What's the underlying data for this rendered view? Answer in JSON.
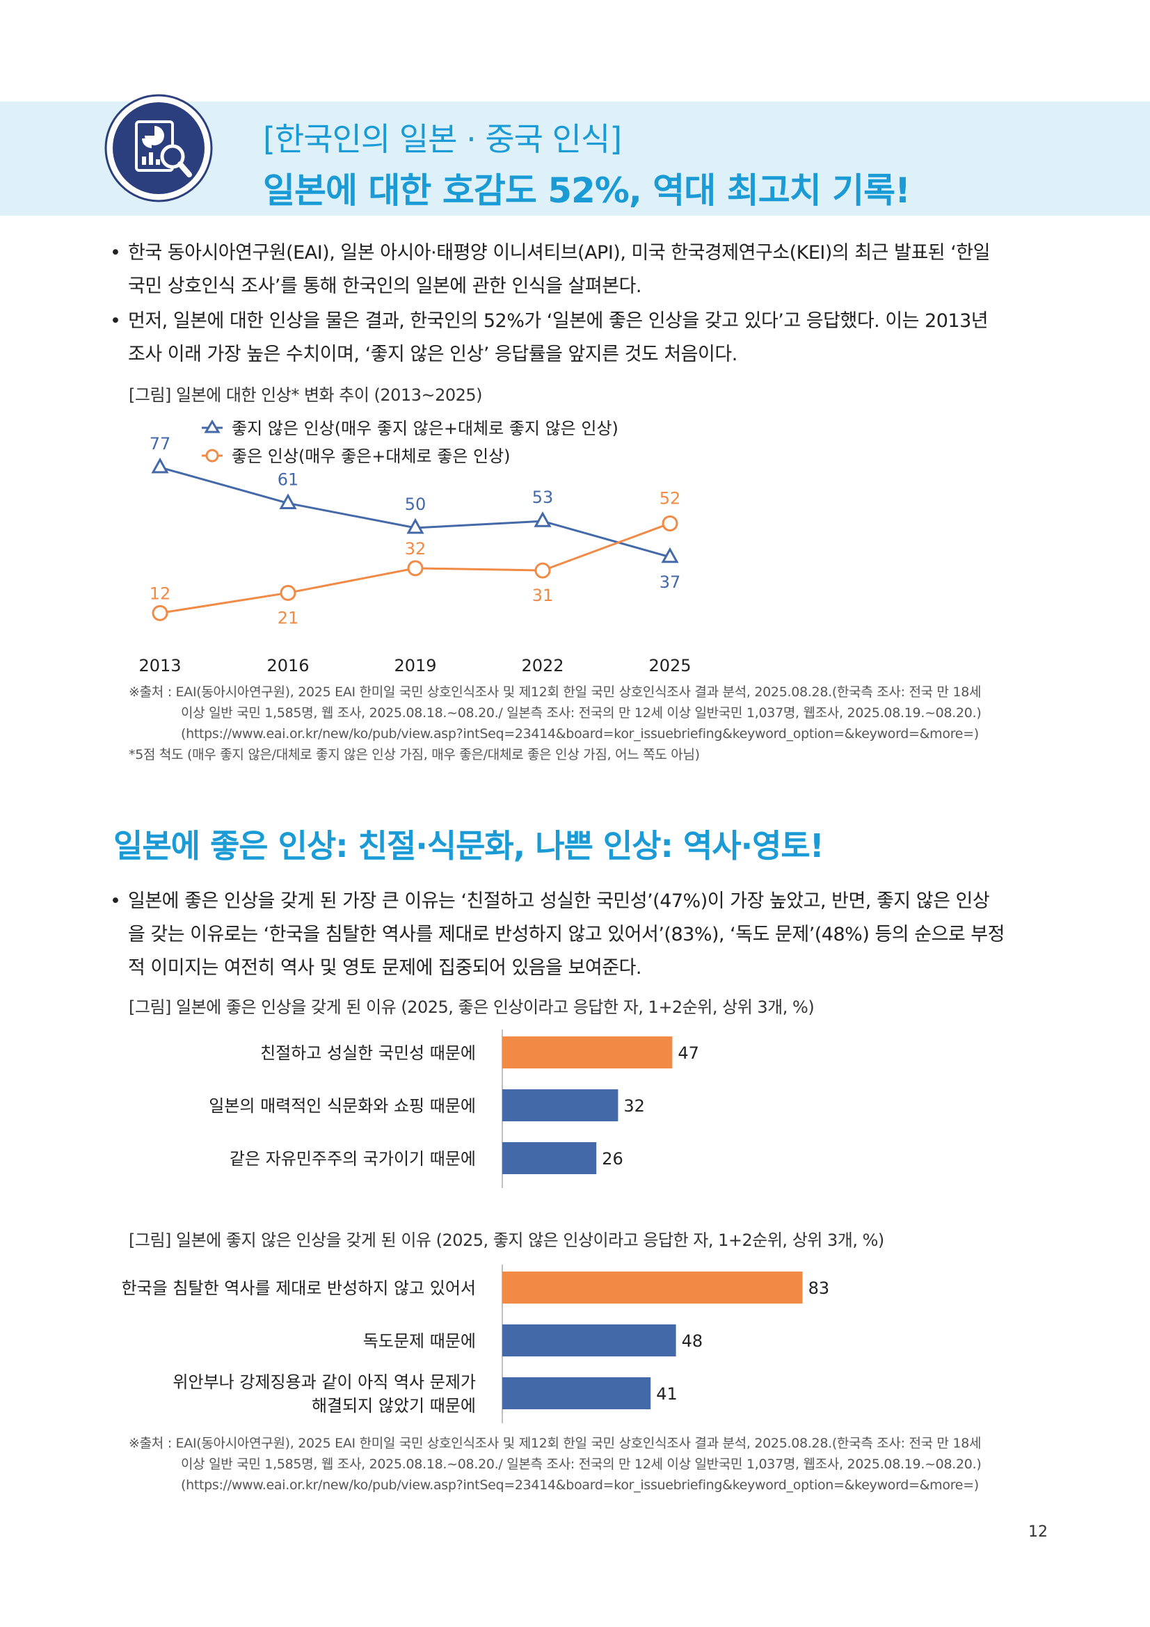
{
  "header": {
    "subtitle": "[한국인의 일본 · 중국 인식]",
    "title": "일본에 대한 호감도 52%, 역대 최고치 기록!"
  },
  "intro_bullets": [
    {
      "line1": "한국 동아시아연구원(EAI), 일본 아시아·태평양 이니셔티브(API), 미국 한국경제연구소(KEI)의 최근 발표된 ‘한일",
      "line2": "국민 상호인식 조사’를 통해 한국인의 일본에 관한 인식을 살펴본다."
    },
    {
      "line1": "먼저, 일본에 대한 인상을 물은 결과, 한국인의 52%가 ‘일본에 좋은 인상을 갖고 있다’고 응답했다. 이는 2013년",
      "line2": "조사 이래 가장 높은 수치이며, ‘좋지 않은 인상’ 응답률을 앞지른 것도 처음이다."
    }
  ],
  "figure1": {
    "caption": "[그림] 일본에 대한 인상* 변화 추이 (2013~2025)",
    "source_lines": [
      "※출처 : EAI(동아시아연구원), 2025 EAI 한미일 국민 상호인식조사 및 제12회 한일 국민 상호인식조사 결과 분석, 2025.08.28.(한국측 조사: 전국 만 18세",
      "이상 일반 국민 1,585명, 웹 조사, 2025.08.18.~08.20./ 일본측 조사: 전국의 만 12세 이상 일반국민 1,037명, 웹조사, 2025.08.19.~08.20.)",
      "(https://www.eai.or.kr/new/ko/pub/view.asp?intSeq=23414&board=kor_issuebriefing&keyword_option=&keyword=&more=)"
    ],
    "footnote": "*5점 척도 (매우 좋지 않은/대체로 좋지 않은 인상 가짐, 매우 좋은/대체로 좋은 인상 가짐, 어느 쪽도 아님)"
  },
  "section2": {
    "title": "일본에 좋은 인상: 친절·식문화, 나쁜 인상: 역사·영토!",
    "bullet": {
      "line1": "일본에 좋은 인상을 갖게 된 가장 큰 이유는 ‘친절하고 성실한 국민성’(47%)이 가장 높았고, 반면, 좋지 않은 인상",
      "line2": "을 갖는 이유로는 ‘한국을 침탈한 역사를 제대로 반성하지 않고 있어서’(83%), ‘독도 문제’(48%) 등의 순으로 부정",
      "line3": "적 이미지는 여전히 역사 및 영토 문제에 집중되어 있음을 보여준다."
    },
    "figure2_caption": "[그림] 일본에 좋은 인상을 갖게 된 이유 (2025, 좋은 인상이라고 응답한 자, 1+2순위, 상위 3개, %)",
    "figure3_caption": "[그림] 일본에 좋지 않은 인상을 갖게 된 이유 (2025, 좋지 않은 인상이라고 응답한 자, 1+2순위, 상위 3개, %)",
    "source_lines": [
      "※출처 : EAI(동아시아연구원), 2025 EAI 한미일 국민 상호인식조사 및 제12회 한일 국민 상호인식조사 결과 분석, 2025.08.28.(한국측 조사: 전국 만 18세",
      "이상 일반 국민 1,585명, 웹 조사, 2025.08.18.~08.20./ 일본측 조사: 전국의 만 12세 이상 일반국민 1,037명, 웹조사, 2025.08.19.~08.20.)",
      "(https://www.eai.or.kr/new/ko/pub/view.asp?intSeq=23414&board=kor_issuebriefing&keyword_option=&keyword=&more=)"
    ]
  },
  "page_number": "12",
  "colors": {
    "accent": "#1b9bd6",
    "band": "#dff1f8",
    "blue": "#4469a8",
    "orange": "#f08a45",
    "icon_bg": "#2b3f7e"
  },
  "icons": {
    "header": "report-magnifier-icon",
    "legend_negative": "triangle-marker-icon",
    "legend_positive": "circle-marker-icon"
  },
  "chart_data": [
    {
      "type": "line",
      "x": [
        "2013",
        "2016",
        "2019",
        "2022",
        "2025"
      ],
      "series": [
        {
          "name": "좋지 않은 인상(매우 좋지 않은+대체로 좋지 않은 인상)",
          "values": [
            77,
            61,
            50,
            53,
            37
          ],
          "color": "#4469a8",
          "marker": "triangle"
        },
        {
          "name": "좋은 인상(매우 좋은+대체로 좋은 인상)",
          "values": [
            12,
            21,
            32,
            31,
            52
          ],
          "color": "#f08a45",
          "marker": "circle"
        }
      ],
      "ylim": [
        0,
        90
      ],
      "grid": false,
      "legend": "top"
    },
    {
      "type": "bar",
      "orientation": "horizontal",
      "categories": [
        "친절하고 성실한 국민성 때문에",
        "일본의 매력적인 식문화와 쇼핑 때문에",
        "같은 자유민주주의 국가이기 때문에"
      ],
      "values": [
        47,
        32,
        26
      ],
      "bar_colors": [
        "#f08a45",
        "#4469a8",
        "#4469a8"
      ],
      "xlim": [
        0,
        100
      ]
    },
    {
      "type": "bar",
      "orientation": "horizontal",
      "categories": [
        "한국을 침탈한 역사를 제대로 반성하지 않고 있어서",
        "독도문제 때문에",
        "위안부나 강제징용과 같이 아직 역사 문제가 해결되지 않았기 때문에"
      ],
      "category_lines": [
        [
          "한국을 침탈한 역사를 제대로 반성하지 않고 있어서"
        ],
        [
          "독도문제 때문에"
        ],
        [
          "위안부나 강제징용과 같이 아직 역사 문제가",
          "해결되지 않았기 때문에"
        ]
      ],
      "values": [
        83,
        48,
        41
      ],
      "bar_colors": [
        "#f08a45",
        "#4469a8",
        "#4469a8"
      ],
      "xlim": [
        0,
        100
      ]
    }
  ]
}
